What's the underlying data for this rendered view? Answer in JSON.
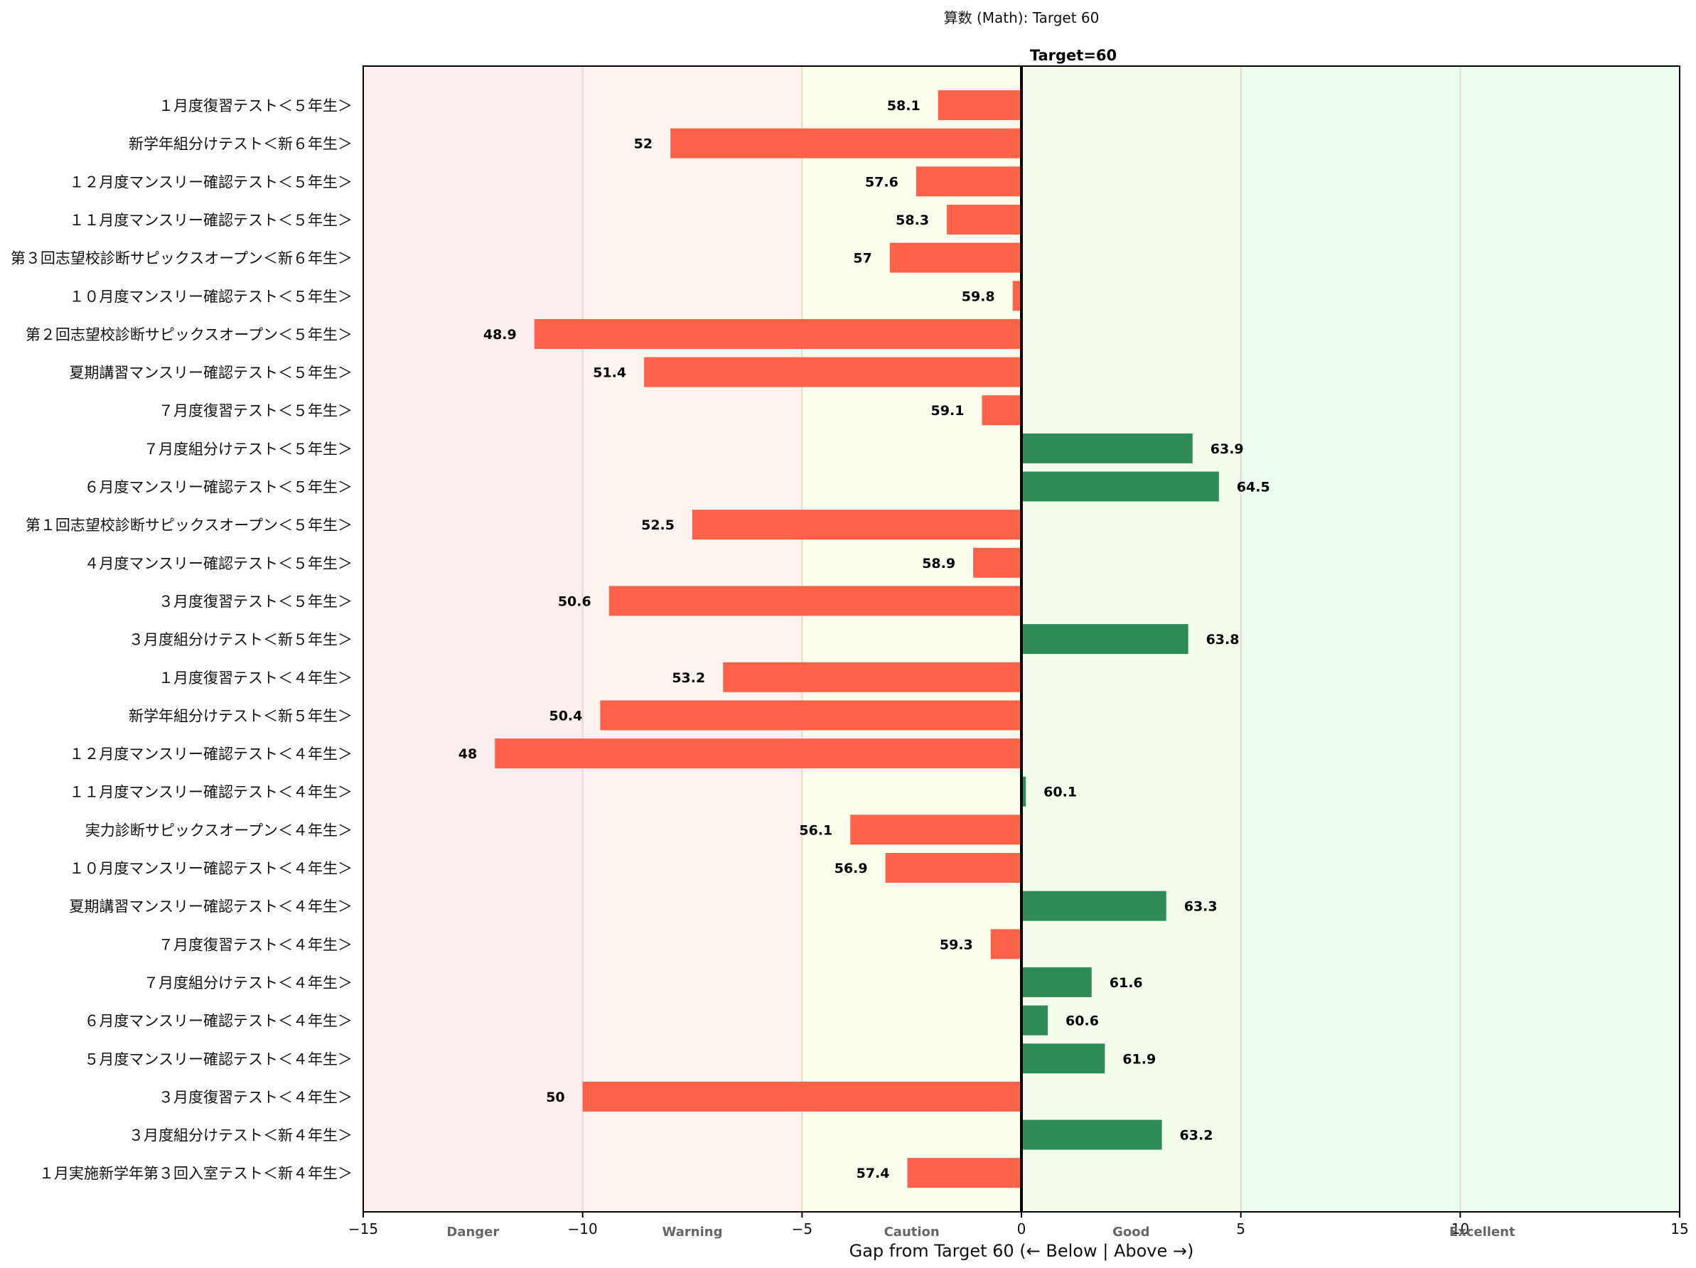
{
  "chart_data": {
    "type": "bar",
    "orientation": "horizontal",
    "title": "算数 (Math): Target 60",
    "target_label": "Target=60",
    "target": 60,
    "xlabel": "Gap from Target 60  (← Below | Above →)",
    "xlim": [
      -15,
      15
    ],
    "xticks": [
      -15,
      -10,
      -5,
      0,
      5,
      10,
      15
    ],
    "xtick_labels": [
      "−15",
      "−10",
      "−5",
      "0",
      "5",
      "10",
      "15"
    ],
    "zones": [
      {
        "name": "Danger",
        "from": -15,
        "to": -10,
        "color": "#fdeeee",
        "label_at": -12.5
      },
      {
        "name": "Warning",
        "from": -10,
        "to": -5,
        "color": "#fdf4ef",
        "label_at": -7.5
      },
      {
        "name": "Caution",
        "from": -5,
        "to": 0,
        "color": "#fdfdee",
        "label_at": -2.5
      },
      {
        "name": "Good",
        "from": 0,
        "to": 5,
        "color": "#f4fdeb",
        "label_at": 2.5
      },
      {
        "name": "Excellent",
        "from": 5,
        "to": 15,
        "color": "#ebfcee",
        "label_at": 10.5
      }
    ],
    "colors": {
      "below": "#fe6249",
      "above": "#2e8b57"
    },
    "categories": [
      "１月度復習テスト＜５年生＞",
      "新学年組分けテスト＜新６年生＞",
      "１２月度マンスリー確認テスト＜５年生＞",
      "１１月度マンスリー確認テスト＜５年生＞",
      "第３回志望校診断サピックスオープン＜新６年生＞",
      "１０月度マンスリー確認テスト＜５年生＞",
      "第２回志望校診断サピックスオープン＜５年生＞",
      "夏期講習マンスリー確認テスト＜５年生＞",
      "７月度復習テスト＜５年生＞",
      "７月度組分けテスト＜５年生＞",
      "６月度マンスリー確認テスト＜５年生＞",
      "第１回志望校診断サピックスオープン＜５年生＞",
      "４月度マンスリー確認テスト＜５年生＞",
      "３月度復習テスト＜５年生＞",
      "３月度組分けテスト＜新５年生＞",
      "１月度復習テスト＜４年生＞",
      "新学年組分けテスト＜新５年生＞",
      "１２月度マンスリー確認テスト＜４年生＞",
      "１１月度マンスリー確認テスト＜４年生＞",
      "実力診断サピックスオープン＜４年生＞",
      "１０月度マンスリー確認テスト＜４年生＞",
      "夏期講習マンスリー確認テスト＜４年生＞",
      "７月度復習テスト＜４年生＞",
      "７月度組分けテスト＜４年生＞",
      "６月度マンスリー確認テスト＜４年生＞",
      "５月度マンスリー確認テスト＜４年生＞",
      "３月度復習テスト＜４年生＞",
      "３月度組分けテスト＜新４年生＞",
      "１月実施新学年第３回入室テスト＜新４年生＞"
    ],
    "scores": [
      58.1,
      52,
      57.6,
      58.3,
      57,
      59.8,
      48.9,
      51.4,
      59.1,
      63.9,
      64.5,
      52.5,
      58.9,
      50.6,
      63.8,
      53.2,
      50.4,
      48,
      60.1,
      56.1,
      56.9,
      63.3,
      59.3,
      61.6,
      60.6,
      61.9,
      50,
      63.2,
      57.4
    ],
    "score_labels": [
      "58.1",
      "52",
      "57.6",
      "58.3",
      "57",
      "59.8",
      "48.9",
      "51.4",
      "59.1",
      "63.9",
      "64.5",
      "52.5",
      "58.9",
      "50.6",
      "63.8",
      "53.2",
      "50.4",
      "48",
      "60.1",
      "56.1",
      "56.9",
      "63.3",
      "59.3",
      "61.6",
      "60.6",
      "61.9",
      "50",
      "63.2",
      "57.4"
    ],
    "gaps": [
      -1.9,
      -8,
      -2.4,
      -1.7,
      -3,
      -0.2,
      -11.1,
      -8.6,
      -0.9,
      3.9,
      4.5,
      -7.5,
      -1.1,
      -9.4,
      3.8,
      -6.8,
      -9.6,
      -12,
      0.1,
      -3.9,
      -3.1,
      3.3,
      -0.7,
      1.6,
      0.6,
      1.9,
      -10,
      3.2,
      -2.6
    ]
  }
}
